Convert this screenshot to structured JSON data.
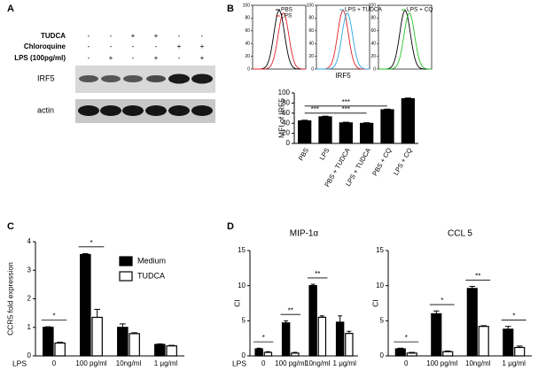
{
  "panel_labels": [
    "A",
    "B",
    "C",
    "D"
  ],
  "panel_a": {
    "rows": [
      {
        "label": "TUDCA",
        "signs": [
          "-",
          "-",
          "+",
          "+",
          "-",
          "-"
        ]
      },
      {
        "label": "Chloroquine",
        "signs": [
          "-",
          "-",
          "-",
          "-",
          "+",
          "+"
        ]
      },
      {
        "label": "LPS (100pg/ml)",
        "signs": [
          "-",
          "+",
          "-",
          "+",
          "-",
          "+"
        ]
      }
    ],
    "blots": [
      "IRF5",
      "actin"
    ]
  },
  "flow_panels": [
    {
      "ylim": [
        0,
        100
      ],
      "yticks": [
        0,
        20,
        40,
        60,
        80,
        100
      ],
      "curve_colors": [
        "#000000",
        "#e0202a"
      ],
      "legend": [
        {
          "name": "PBS",
          "color": "#000000"
        },
        {
          "name": "LPS",
          "color": "#e0202a"
        }
      ]
    },
    {
      "ylim": [
        0,
        100
      ],
      "yticks": [
        0,
        20,
        40,
        60,
        80,
        100
      ],
      "curve_colors": [
        "#e0202a",
        "#2aa7e0"
      ],
      "xlabel": "IRF5",
      "legend": [
        {
          "name": "LPS + TUDCA",
          "color": "#2aa7e0"
        }
      ]
    },
    {
      "ylim": [
        0,
        100
      ],
      "yticks": [
        0,
        20,
        40,
        60,
        80,
        100
      ],
      "curve_colors": [
        "#000000",
        "#22c322"
      ],
      "legend": [
        {
          "name": "LPS + CQ",
          "color": "#22c322"
        }
      ]
    }
  ],
  "chart_data": [
    {
      "type": "bar",
      "ylabel": "MFI of IRF5",
      "categories": [
        "PBS",
        "LPS",
        "PBS + TUDCA",
        "LPS + TUDCA",
        "PBS + CQ",
        "LPS + CQ"
      ],
      "values": [
        45,
        53,
        41,
        40,
        67,
        89
      ],
      "errors": [
        1,
        1,
        1,
        1,
        1,
        1
      ],
      "color": "#000000",
      "ylim": [
        0,
        100
      ],
      "yticks": [
        0,
        20,
        40,
        60,
        80,
        100
      ],
      "annotations": [
        {
          "from": 0,
          "to": 1,
          "text": "***"
        },
        {
          "from": 1,
          "to": 3,
          "text": "***"
        },
        {
          "from": 0,
          "to": 4,
          "text": "***"
        }
      ]
    },
    {
      "type": "grouped_bar",
      "ylabel": "CCR5 fold expression",
      "x_prefix": "LPS",
      "categories": [
        "0",
        "100 pg/ml",
        "10ng/ml",
        "1 μg/ml"
      ],
      "series": [
        {
          "name": "Medium",
          "color": "#000000",
          "values": [
            1.0,
            3.55,
            1.0,
            0.4
          ],
          "errors": [
            0.02,
            0.03,
            0.12,
            0.02
          ]
        },
        {
          "name": "TUDCA",
          "color": "#ffffff",
          "values": [
            0.45,
            1.35,
            0.78,
            0.35
          ],
          "errors": [
            0.03,
            0.28,
            0.03,
            0.02
          ]
        }
      ],
      "ylim": [
        0,
        4
      ],
      "yticks": [
        0,
        1,
        2,
        3,
        4
      ],
      "legend": true,
      "annotations": [
        {
          "category": 0,
          "text": "*"
        },
        {
          "category": 1,
          "text": "*"
        }
      ]
    },
    {
      "type": "grouped_bar",
      "title": "MIP-1α",
      "ylabel": "CI",
      "x_prefix": "LPS",
      "categories": [
        "0",
        "100 pg/ml",
        "10ng/ml",
        "1 μg/ml"
      ],
      "series": [
        {
          "name": "Medium",
          "color": "#000000",
          "values": [
            1.0,
            4.7,
            10.0,
            4.8
          ],
          "errors": [
            0.1,
            0.3,
            0.2,
            0.9
          ]
        },
        {
          "name": "TUDCA",
          "color": "#ffffff",
          "values": [
            0.5,
            0.4,
            5.5,
            3.2
          ],
          "errors": [
            0.1,
            0.1,
            0.2,
            0.3
          ]
        }
      ],
      "ylim": [
        0,
        15
      ],
      "yticks": [
        0,
        5,
        10,
        15
      ],
      "annotations": [
        {
          "category": 0,
          "text": "*"
        },
        {
          "category": 1,
          "text": "**"
        },
        {
          "category": 2,
          "text": "**"
        }
      ]
    },
    {
      "type": "grouped_bar",
      "title": "CCL 5",
      "ylabel": "CI",
      "categories": [
        "0",
        "100 pg/ml",
        "10ng/ml",
        "1 μg/ml"
      ],
      "series": [
        {
          "name": "Medium",
          "color": "#000000",
          "values": [
            1.0,
            6.0,
            9.6,
            3.8
          ],
          "errors": [
            0.1,
            0.4,
            0.3,
            0.4
          ]
        },
        {
          "name": "TUDCA",
          "color": "#ffffff",
          "values": [
            0.4,
            0.6,
            4.2,
            1.2
          ],
          "errors": [
            0.1,
            0.1,
            0.1,
            0.2
          ]
        }
      ],
      "ylim": [
        0,
        15
      ],
      "yticks": [
        0,
        5,
        10,
        15
      ],
      "annotations": [
        {
          "category": 0,
          "text": "*"
        },
        {
          "category": 1,
          "text": "*"
        },
        {
          "category": 2,
          "text": "**"
        },
        {
          "category": 3,
          "text": "*"
        }
      ]
    }
  ]
}
